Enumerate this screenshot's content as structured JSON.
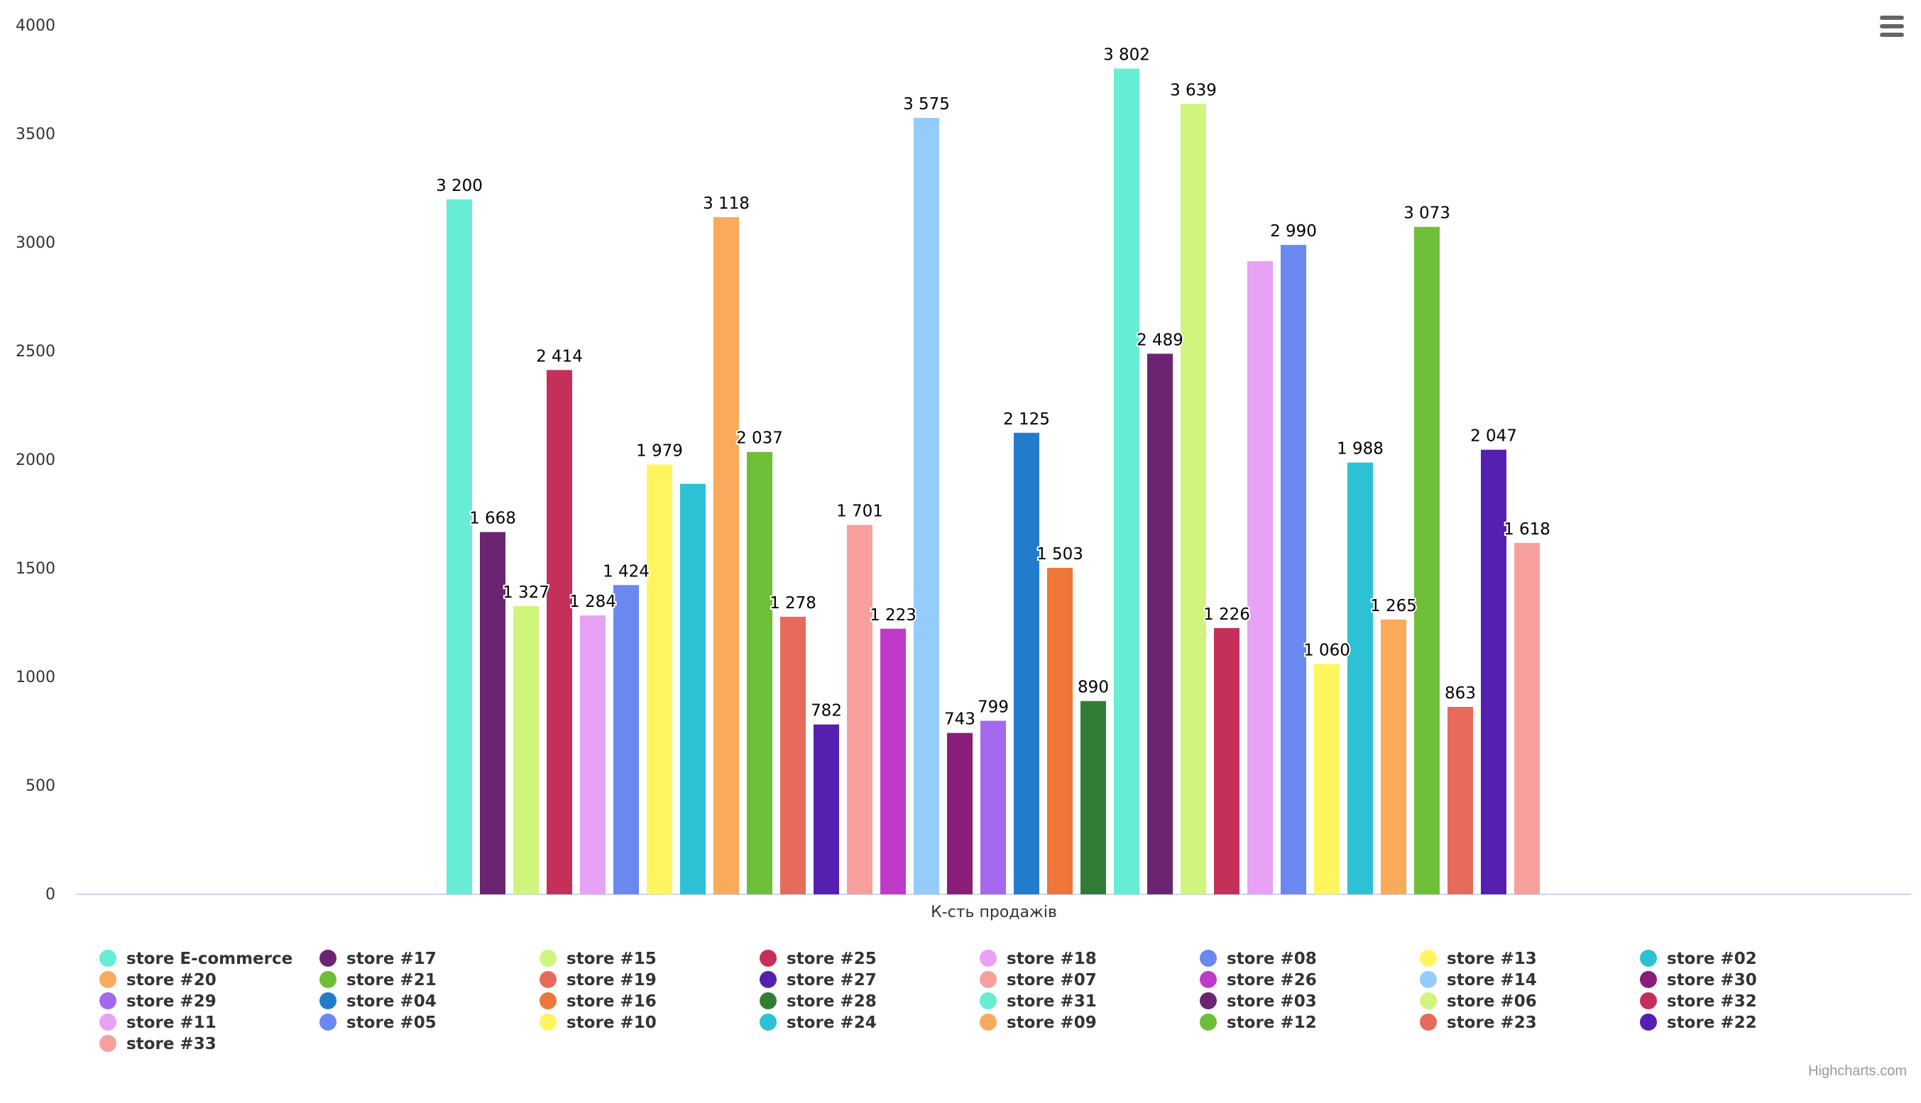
{
  "app": {
    "menu_icon": "hamburger-menu-icon",
    "credits": "Highcharts.com"
  },
  "chart_data": {
    "type": "bar",
    "title": "",
    "xlabel": "К-сть продажів",
    "ylabel": "",
    "ylim": [
      0,
      4000
    ],
    "yticks": [
      0,
      500,
      1000,
      1500,
      2000,
      2500,
      3000,
      3500,
      4000
    ],
    "grid": false,
    "legend_position": "bottom",
    "categories": [
      "К-сть продажів"
    ],
    "series": [
      {
        "name": "store E-commerce",
        "value": 3200,
        "label": "3 200",
        "color": "#66EDD4"
      },
      {
        "name": "store #17",
        "value": 1668,
        "label": "1 668",
        "color": "#6B2470"
      },
      {
        "name": "store #15",
        "value": 1327,
        "label": "1 327",
        "color": "#D0F57C"
      },
      {
        "name": "store #25",
        "value": 2414,
        "label": "2 414",
        "color": "#C4305A"
      },
      {
        "name": "store #18",
        "value": 1284,
        "label": "1 284",
        "color": "#E8A2F5"
      },
      {
        "name": "store #08",
        "value": 1424,
        "label": "1 424",
        "color": "#6B88F0"
      },
      {
        "name": "store #13",
        "value": 1979,
        "label": "1 979",
        "color": "#FFF55E"
      },
      {
        "name": "store #02",
        "value": 1890,
        "label": "",
        "color": "#2CC1D4"
      },
      {
        "name": "store #20",
        "value": 3118,
        "label": "3 118",
        "color": "#F9AA5A"
      },
      {
        "name": "store #21",
        "value": 2037,
        "label": "2 037",
        "color": "#6FBE38"
      },
      {
        "name": "store #19",
        "value": 1278,
        "label": "1 278",
        "color": "#E76B5C"
      },
      {
        "name": "store #27",
        "value": 782,
        "label": "782",
        "color": "#5520B0"
      },
      {
        "name": "store #07",
        "value": 1701,
        "label": "1 701",
        "color": "#F7A09E"
      },
      {
        "name": "store #26",
        "value": 1223,
        "label": "1 223",
        "color": "#C03ACA"
      },
      {
        "name": "store #14",
        "value": 3575,
        "label": "3 575",
        "color": "#94CCFC"
      },
      {
        "name": "store #30",
        "value": 743,
        "label": "743",
        "color": "#8A1D78"
      },
      {
        "name": "store #29",
        "value": 799,
        "label": "799",
        "color": "#A468EF"
      },
      {
        "name": "store #04",
        "value": 2125,
        "label": "2 125",
        "color": "#237CCB"
      },
      {
        "name": "store #16",
        "value": 1503,
        "label": "1 503",
        "color": "#EE7638"
      },
      {
        "name": "store #28",
        "value": 890,
        "label": "890",
        "color": "#327D35"
      },
      {
        "name": "store #31",
        "value": 3802,
        "label": "3 802",
        "color": "#66EDD4"
      },
      {
        "name": "store #03",
        "value": 2489,
        "label": "2 489",
        "color": "#6B2470"
      },
      {
        "name": "store #06",
        "value": 3639,
        "label": "3 639",
        "color": "#D0F57C"
      },
      {
        "name": "store #32",
        "value": 1226,
        "label": "1 226",
        "color": "#C4305A"
      },
      {
        "name": "store #11",
        "value": 2915,
        "label": "",
        "color": "#E8A2F5"
      },
      {
        "name": "store #05",
        "value": 2990,
        "label": "2 990",
        "color": "#6B88F0"
      },
      {
        "name": "store #10",
        "value": 1060,
        "label": "1 060",
        "color": "#FFF55E"
      },
      {
        "name": "store #24",
        "value": 1988,
        "label": "1 988",
        "color": "#2CC1D4"
      },
      {
        "name": "store #09",
        "value": 1265,
        "label": "1 265",
        "color": "#F9AA5A"
      },
      {
        "name": "store #12",
        "value": 3073,
        "label": "3 073",
        "color": "#6FBE38"
      },
      {
        "name": "store #23",
        "value": 863,
        "label": "863",
        "color": "#E76B5C"
      },
      {
        "name": "store #22",
        "value": 2047,
        "label": "2 047",
        "color": "#5520B0"
      },
      {
        "name": "store #33",
        "value": 1618,
        "label": "1 618",
        "color": "#F7A09E"
      }
    ]
  }
}
